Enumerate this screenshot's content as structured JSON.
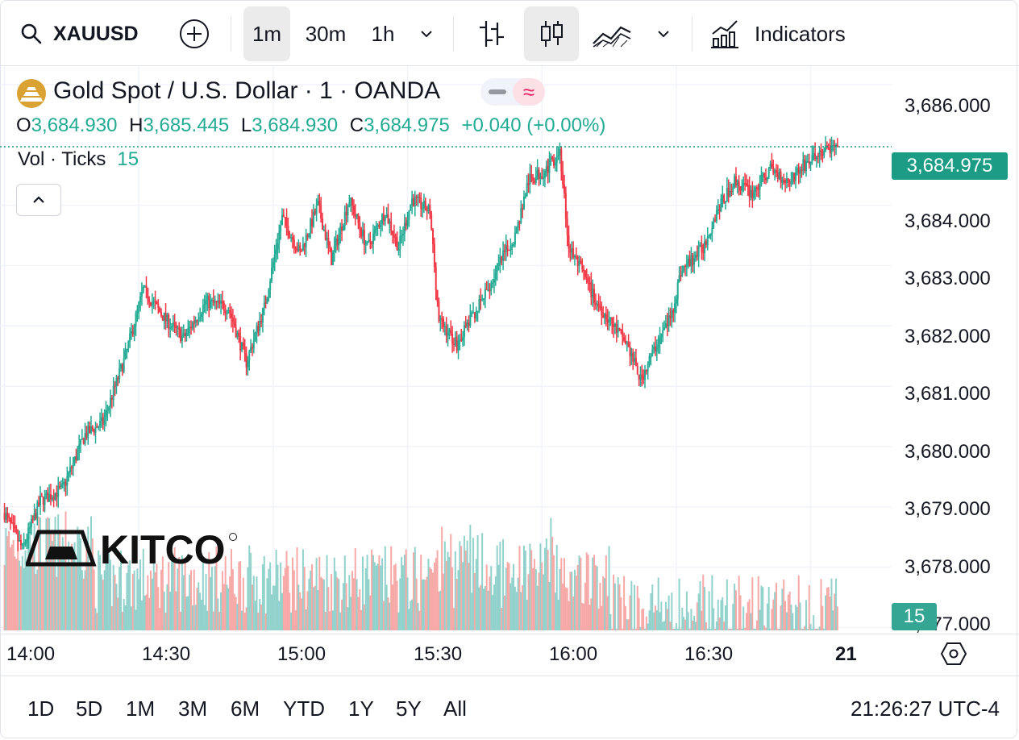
{
  "toolbar": {
    "symbol": "XAUUSD",
    "intervals": [
      "1m",
      "30m",
      "1h"
    ],
    "active_interval": "1m",
    "indicators_label": "Indicators"
  },
  "legend": {
    "title": "Gold Spot / U.S. Dollar · 1 · OANDA",
    "open_label": "O",
    "open": "3,684.930",
    "high_label": "H",
    "high": "3,685.445",
    "low_label": "L",
    "low": "3,684.930",
    "close_label": "C",
    "close": "3,684.975",
    "change": "+0.040 (+0.00%)",
    "vol_label": "Vol · Ticks",
    "vol_value": "15"
  },
  "watermark": "KITCO",
  "current_price": "3,684.975",
  "current_volume": "15",
  "time_range_buttons": [
    "1D",
    "5D",
    "1M",
    "3M",
    "6M",
    "YTD",
    "1Y",
    "5Y",
    "All"
  ],
  "clock": "21:26:27 UTC-4",
  "colors": {
    "up": "#22ab94",
    "down": "#f23645",
    "up_vol": "#92d2cc",
    "down_vol": "#f7a9a7",
    "accent": "#1c9c84"
  },
  "chart_data": {
    "type": "candlestick",
    "title": "Gold Spot / U.S. Dollar · 1 · OANDA",
    "y_axis_ticks": [
      "3,686.000",
      "3,684.000",
      "3,683.000",
      "3,682.000",
      "3,681.000",
      "3,680.000",
      "3,679.000",
      "3,678.000",
      "3,677.000"
    ],
    "y_tick_values": [
      3686,
      3684,
      3683,
      3682,
      3681,
      3680,
      3679,
      3678,
      3677
    ],
    "ylim": [
      3676.98,
      3686.2
    ],
    "x_axis_ticks": [
      "14:00",
      "14:30",
      "15:00",
      "15:30",
      "16:00",
      "16:30",
      "21"
    ],
    "x_tick_minutes": [
      0,
      30,
      60,
      90,
      120,
      150,
      180
    ],
    "xlim_minutes": [
      -1,
      197
    ],
    "anchors": [
      [
        0,
        3678.9
      ],
      [
        4,
        3678.3
      ],
      [
        8,
        3679.1
      ],
      [
        13,
        3679.3
      ],
      [
        18,
        3680.2
      ],
      [
        22,
        3680.4
      ],
      [
        27,
        3681.5
      ],
      [
        31,
        3682.6
      ],
      [
        36,
        3682.1
      ],
      [
        40,
        3681.8
      ],
      [
        45,
        3682.4
      ],
      [
        50,
        3682.3
      ],
      [
        54,
        3681.4
      ],
      [
        58,
        3682.3
      ],
      [
        62,
        3683.8
      ],
      [
        66,
        3683.2
      ],
      [
        70,
        3684.0
      ],
      [
        73,
        3683.1
      ],
      [
        77,
        3684.1
      ],
      [
        81,
        3683.3
      ],
      [
        85,
        3683.9
      ],
      [
        88,
        3683.3
      ],
      [
        91,
        3684.1
      ],
      [
        95,
        3683.9
      ],
      [
        97,
        3682.1
      ],
      [
        101,
        3681.7
      ],
      [
        104,
        3682.1
      ],
      [
        108,
        3682.6
      ],
      [
        111,
        3683.1
      ],
      [
        114,
        3683.5
      ],
      [
        117,
        3684.4
      ],
      [
        121,
        3684.6
      ],
      [
        124,
        3684.9
      ],
      [
        126,
        3683.3
      ],
      [
        129,
        3682.9
      ],
      [
        132,
        3682.4
      ],
      [
        135,
        3682.1
      ],
      [
        139,
        3681.7
      ],
      [
        142,
        3681.1
      ],
      [
        145,
        3681.6
      ],
      [
        149,
        3682.2
      ],
      [
        151,
        3682.9
      ],
      [
        156,
        3683.3
      ],
      [
        159,
        3683.9
      ],
      [
        163,
        3684.4
      ],
      [
        167,
        3684.2
      ],
      [
        171,
        3684.6
      ],
      [
        175,
        3684.4
      ],
      [
        179,
        3684.7
      ],
      [
        183,
        3684.9
      ],
      [
        186,
        3684.97
      ]
    ],
    "volume_ylim": [
      0,
      27
    ]
  }
}
